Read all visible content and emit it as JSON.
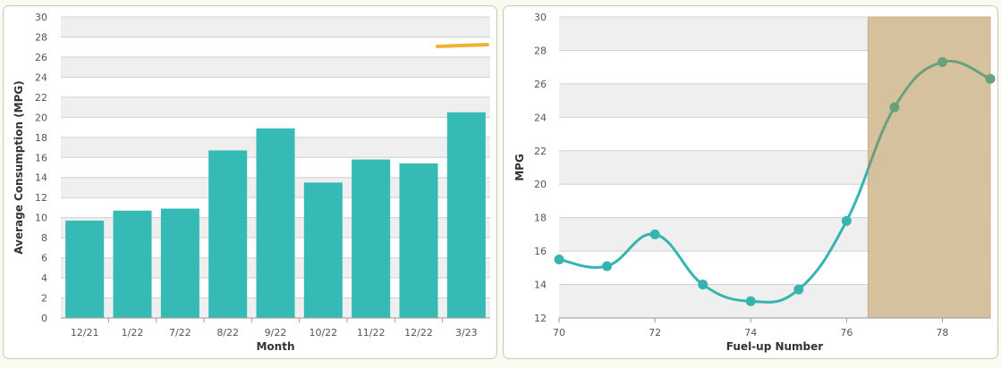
{
  "chart_data": [
    {
      "type": "bar",
      "title": "",
      "xlabel": "Month",
      "ylabel": "Average Consumption (MPG)",
      "categories": [
        "12/21",
        "1/22",
        "7/22",
        "8/22",
        "9/22",
        "10/22",
        "11/22",
        "12/22",
        "3/23"
      ],
      "values": [
        9.7,
        10.7,
        10.9,
        16.7,
        18.9,
        13.5,
        15.8,
        15.4,
        20.5
      ],
      "ylim": [
        0,
        30
      ],
      "yticks": [
        0,
        2,
        4,
        6,
        8,
        10,
        12,
        14,
        16,
        18,
        20,
        22,
        24,
        26,
        28,
        30
      ],
      "grid": true,
      "bar_color": "#35bab5",
      "reference_line": {
        "value": 27.2,
        "color": "#f0b135"
      }
    },
    {
      "type": "line",
      "title": "",
      "xlabel": "Fuel-up Number",
      "ylabel": "MPG",
      "x": [
        70,
        71,
        72,
        73,
        74,
        75,
        76,
        77,
        78,
        79
      ],
      "y": [
        15.5,
        15.1,
        17.0,
        14.0,
        13.0,
        13.7,
        17.8,
        24.6,
        27.3,
        26.3
      ],
      "xlim": [
        70,
        79
      ],
      "ylim": [
        12,
        30
      ],
      "xticks": [
        70,
        72,
        74,
        76,
        78
      ],
      "yticks": [
        12,
        14,
        16,
        18,
        20,
        22,
        24,
        26,
        28,
        30
      ],
      "grid": true,
      "line_color": "#35b5b0",
      "highlight_line_color": "#6aa07c",
      "highlight_band": {
        "from": 76.45,
        "to": 79
      },
      "band_color": "#d4bd98"
    }
  ]
}
